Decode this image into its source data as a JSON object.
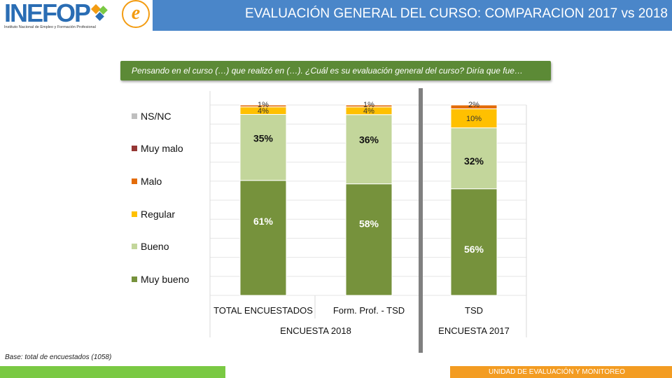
{
  "header": {
    "logo_text": "INEFOP",
    "logo_subtitle": "Instituto Nacional de Empleo y Formación Profesional",
    "title": "EVALUACIÓN GENERAL DEL CURSO: COMPARACION 2017 vs 2018"
  },
  "question": "Pensando en el curso (…) que realizó en (…). ¿Cuál es su evaluación general del curso? Diría que fue…",
  "chart_data": {
    "type": "bar",
    "stacked": true,
    "percent_scale": true,
    "categories": [
      "TOTAL ENCUESTADOS",
      "Form. Prof. - TSD",
      "TSD"
    ],
    "groups": [
      {
        "label": "ENCUESTA 2018",
        "categories": [
          "TOTAL ENCUESTADOS",
          "Form. Prof. - TSD"
        ]
      },
      {
        "label": "ENCUESTA 2017",
        "categories": [
          "TSD"
        ]
      }
    ],
    "series": [
      {
        "name": "Muy bueno",
        "color": "#76923c",
        "values": [
          61,
          58,
          56
        ],
        "labels": [
          "61%",
          "58%",
          "56%"
        ]
      },
      {
        "name": "Bueno",
        "color": "#c3d69b",
        "values": [
          35,
          36,
          32
        ],
        "labels": [
          "35%",
          "36%",
          "32%"
        ]
      },
      {
        "name": "Regular",
        "color": "#ffc000",
        "values": [
          4,
          4,
          10
        ],
        "labels": [
          "4%",
          "4%",
          "10%"
        ]
      },
      {
        "name": "Malo",
        "color": "#e36c09",
        "values": [
          1,
          1,
          2
        ],
        "labels": [
          "1%",
          "1%",
          "2%"
        ]
      },
      {
        "name": "Muy malo",
        "color": "#953735",
        "values": [
          0,
          0,
          0
        ],
        "labels": [
          "",
          "",
          ""
        ]
      },
      {
        "name": "NS/NC",
        "color": "#bfbfbf",
        "values": [
          0,
          0,
          0
        ],
        "labels": [
          "",
          "",
          ""
        ]
      }
    ],
    "legend_order": [
      "NS/NC",
      "Muy malo",
      "Malo",
      "Regular",
      "Bueno",
      "Muy bueno"
    ],
    "ylim": [
      0,
      100
    ],
    "grid": true,
    "legend": "left"
  },
  "base_note": "Base: total de encuestados (1058)",
  "footer": {
    "label": "UNIDAD DE EVALUACIÓN Y MONITOREO"
  }
}
